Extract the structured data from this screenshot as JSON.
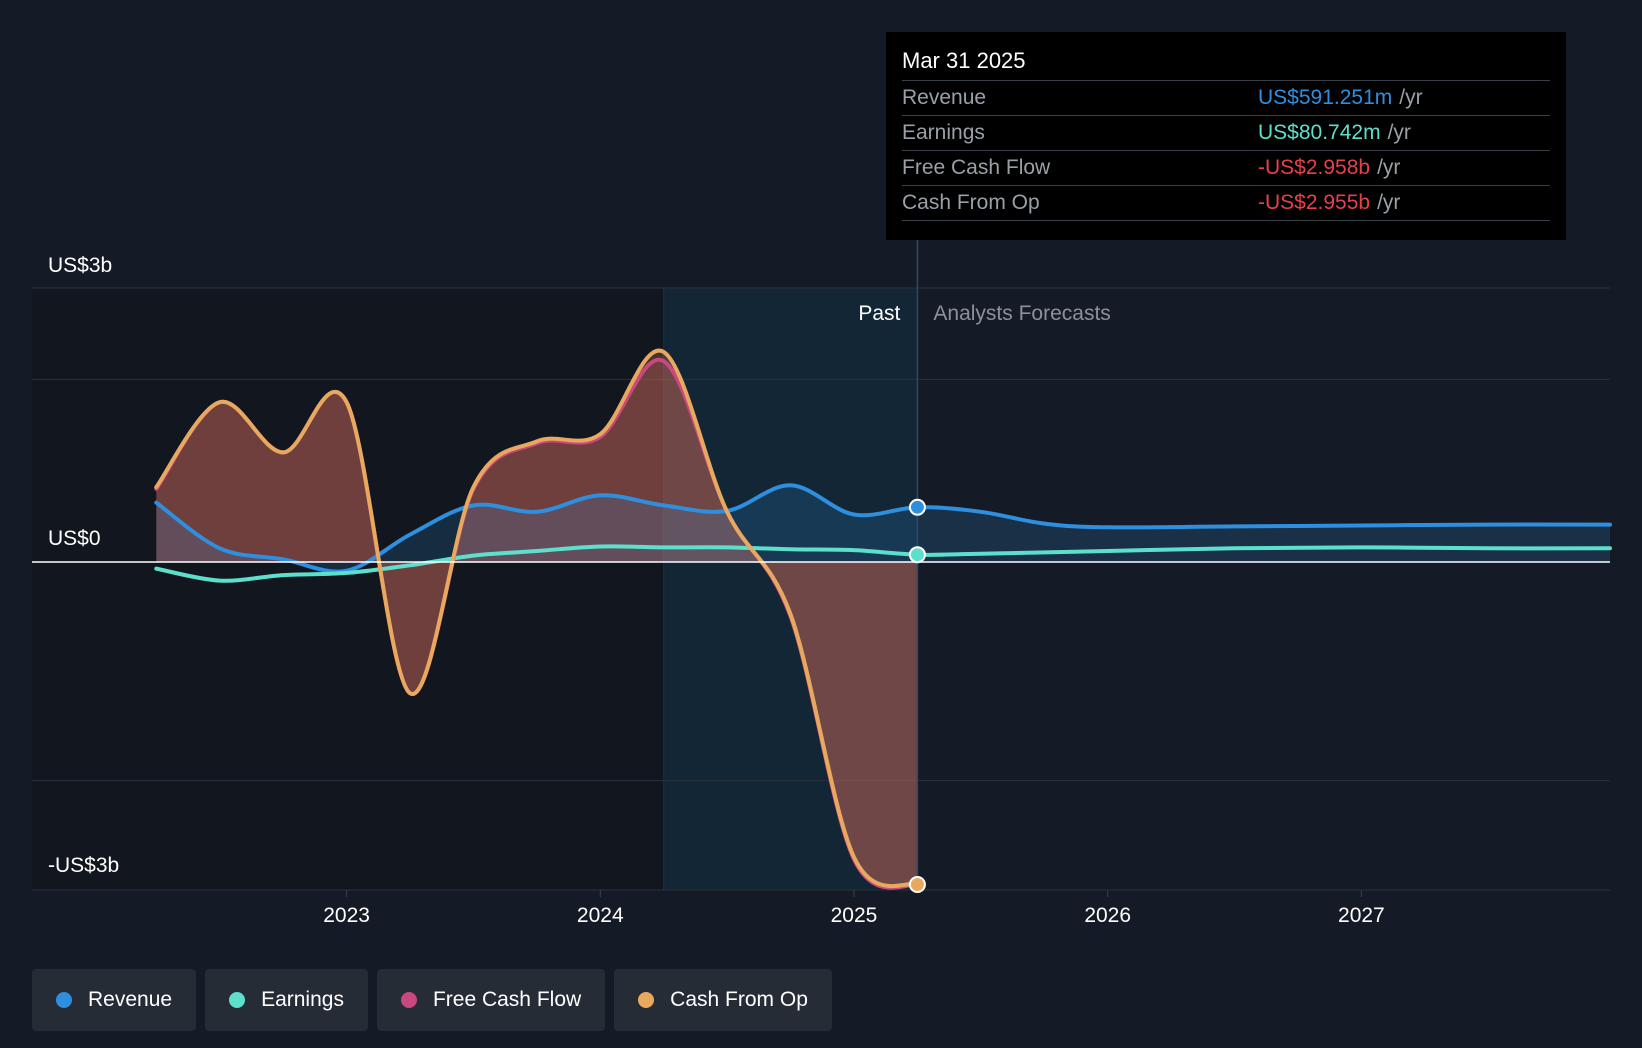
{
  "tooltip": {
    "date": "Mar 31 2025",
    "rows": [
      {
        "label": "Revenue",
        "value": "US$591.251m",
        "unit": "/yr",
        "color": "#2e8fdf"
      },
      {
        "label": "Earnings",
        "value": "US$80.742m",
        "unit": "/yr",
        "color": "#5ce0cc"
      },
      {
        "label": "Free Cash Flow",
        "value": "-US$2.958b",
        "unit": "/yr",
        "color": "#e8404b"
      },
      {
        "label": "Cash From Op",
        "value": "-US$2.955b",
        "unit": "/yr",
        "color": "#e8404b"
      }
    ]
  },
  "legend": [
    {
      "label": "Revenue",
      "color": "#2e8fdf"
    },
    {
      "label": "Earnings",
      "color": "#5ce0cc"
    },
    {
      "label": "Free Cash Flow",
      "color": "#c9487f"
    },
    {
      "label": "Cash From Op",
      "color": "#e8a95e"
    }
  ],
  "chart_data": {
    "type": "line",
    "y_tick_labels": {
      "top": "US$3b",
      "zero": "US$0",
      "bottom": "-US$3b"
    },
    "ylim": [
      -3,
      3
    ],
    "y_unit": "US$b",
    "x_tick_labels": [
      "2023",
      "2024",
      "2025",
      "2026",
      "2027"
    ],
    "x_ticks": [
      2023,
      2024,
      2025,
      2026,
      2027
    ],
    "xlim": [
      2021.76,
      2027.98
    ],
    "past_label": "Past",
    "forecast_label": "Analysts Forecasts",
    "past_start": 2024.25,
    "forecast_start": 2025.25,
    "series": [
      {
        "name": "Revenue",
        "color": "#2e8fdf",
        "points": [
          [
            2022.25,
            0.65
          ],
          [
            2022.5,
            0.15
          ],
          [
            2022.75,
            0.03
          ],
          [
            2023.0,
            -0.08
          ],
          [
            2023.25,
            0.3
          ],
          [
            2023.5,
            0.62
          ],
          [
            2023.75,
            0.55
          ],
          [
            2024.0,
            0.73
          ],
          [
            2024.25,
            0.62
          ],
          [
            2024.5,
            0.56
          ],
          [
            2024.75,
            0.84
          ],
          [
            2025.0,
            0.52
          ],
          [
            2025.25,
            0.6
          ],
          [
            2025.5,
            0.55
          ],
          [
            2025.75,
            0.42
          ],
          [
            2026.0,
            0.38
          ],
          [
            2026.5,
            0.39
          ],
          [
            2027.0,
            0.4
          ],
          [
            2027.5,
            0.41
          ],
          [
            2027.98,
            0.41
          ]
        ]
      },
      {
        "name": "Earnings",
        "color": "#5ce0cc",
        "points": [
          [
            2022.25,
            -0.06
          ],
          [
            2022.5,
            -0.17
          ],
          [
            2022.75,
            -0.12
          ],
          [
            2023.0,
            -0.1
          ],
          [
            2023.25,
            -0.03
          ],
          [
            2023.5,
            0.07
          ],
          [
            2023.75,
            0.12
          ],
          [
            2024.0,
            0.17
          ],
          [
            2024.25,
            0.16
          ],
          [
            2024.5,
            0.16
          ],
          [
            2024.75,
            0.14
          ],
          [
            2025.0,
            0.13
          ],
          [
            2025.25,
            0.08
          ],
          [
            2025.5,
            0.09
          ],
          [
            2026.0,
            0.12
          ],
          [
            2026.5,
            0.15
          ],
          [
            2027.0,
            0.16
          ],
          [
            2027.5,
            0.15
          ],
          [
            2027.98,
            0.15
          ]
        ]
      },
      {
        "name": "Free Cash Flow",
        "color": "#c9487f",
        "points": [
          [
            2022.25,
            0.8
          ],
          [
            2022.5,
            1.75
          ],
          [
            2022.75,
            1.2
          ],
          [
            2023.0,
            1.75
          ],
          [
            2023.25,
            -1.2
          ],
          [
            2023.5,
            0.8
          ],
          [
            2023.75,
            1.3
          ],
          [
            2024.0,
            1.37
          ],
          [
            2024.25,
            2.2
          ],
          [
            2024.5,
            0.55
          ],
          [
            2024.75,
            -0.5
          ],
          [
            2025.0,
            -2.72
          ],
          [
            2025.25,
            -2.96
          ]
        ]
      },
      {
        "name": "Cash From Op",
        "color": "#e8a95e",
        "points": [
          [
            2022.25,
            0.82
          ],
          [
            2022.5,
            1.75
          ],
          [
            2022.75,
            1.2
          ],
          [
            2023.0,
            1.75
          ],
          [
            2023.25,
            -1.2
          ],
          [
            2023.5,
            0.82
          ],
          [
            2023.75,
            1.32
          ],
          [
            2024.0,
            1.4
          ],
          [
            2024.25,
            2.3
          ],
          [
            2024.5,
            0.55
          ],
          [
            2024.75,
            -0.48
          ],
          [
            2025.0,
            -2.7
          ],
          [
            2025.25,
            -2.95
          ]
        ]
      }
    ]
  }
}
